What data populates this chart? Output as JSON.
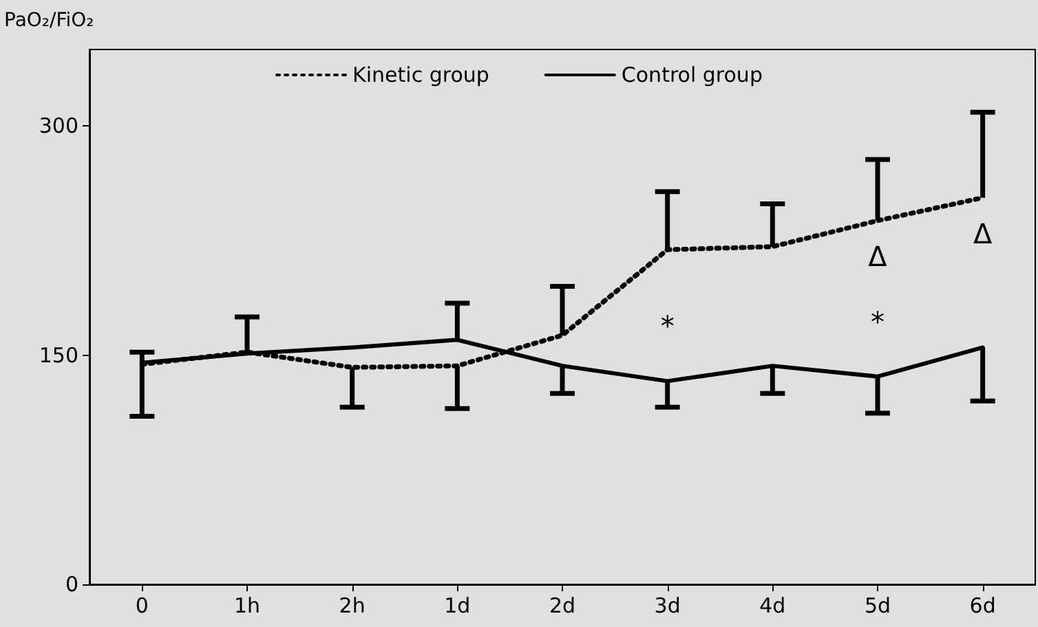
{
  "chart_data": {
    "type": "line",
    "ylabel": "PaO₂/FiO₂",
    "categories": [
      "0",
      "1h",
      "2h",
      "1d",
      "2d",
      "3d",
      "4d",
      "5d",
      "6d"
    ],
    "series": [
      {
        "name": "Kinetic group",
        "color": "#000000",
        "line_style": "dotted",
        "values": [
          144,
          152,
          142,
          143,
          163,
          219,
          221,
          238,
          253
        ],
        "errors": [
          [
            144,
            152
          ],
          [
            152,
            175
          ],
          [
            116,
            142
          ],
          [
            115,
            143
          ],
          [
            163,
            195
          ],
          [
            219,
            257
          ],
          [
            221,
            249
          ],
          [
            238,
            278
          ],
          [
            253,
            309
          ]
        ]
      },
      {
        "name": "Control group",
        "color": "#000000",
        "line_style": "solid",
        "values": [
          145,
          151,
          155,
          160,
          143,
          133,
          143,
          136,
          155
        ],
        "errors": [
          [
            110,
            145
          ],
          null,
          null,
          [
            160,
            184
          ],
          [
            125,
            143
          ],
          [
            116,
            133
          ],
          [
            125,
            143
          ],
          [
            112,
            136
          ],
          [
            120,
            155
          ]
        ]
      }
    ],
    "ylim": [
      0,
      350
    ],
    "yticks": [
      0,
      150,
      300
    ],
    "grid": false,
    "legend": "top",
    "marker": "none",
    "annotations": [
      {
        "text": "*",
        "x": "3d",
        "y": 133
      },
      {
        "text": "*",
        "x": "5d",
        "y": 136
      },
      {
        "text": "Δ",
        "x": "5d",
        "y": 238
      },
      {
        "text": "Δ",
        "x": "6d",
        "y": 253
      }
    ]
  }
}
